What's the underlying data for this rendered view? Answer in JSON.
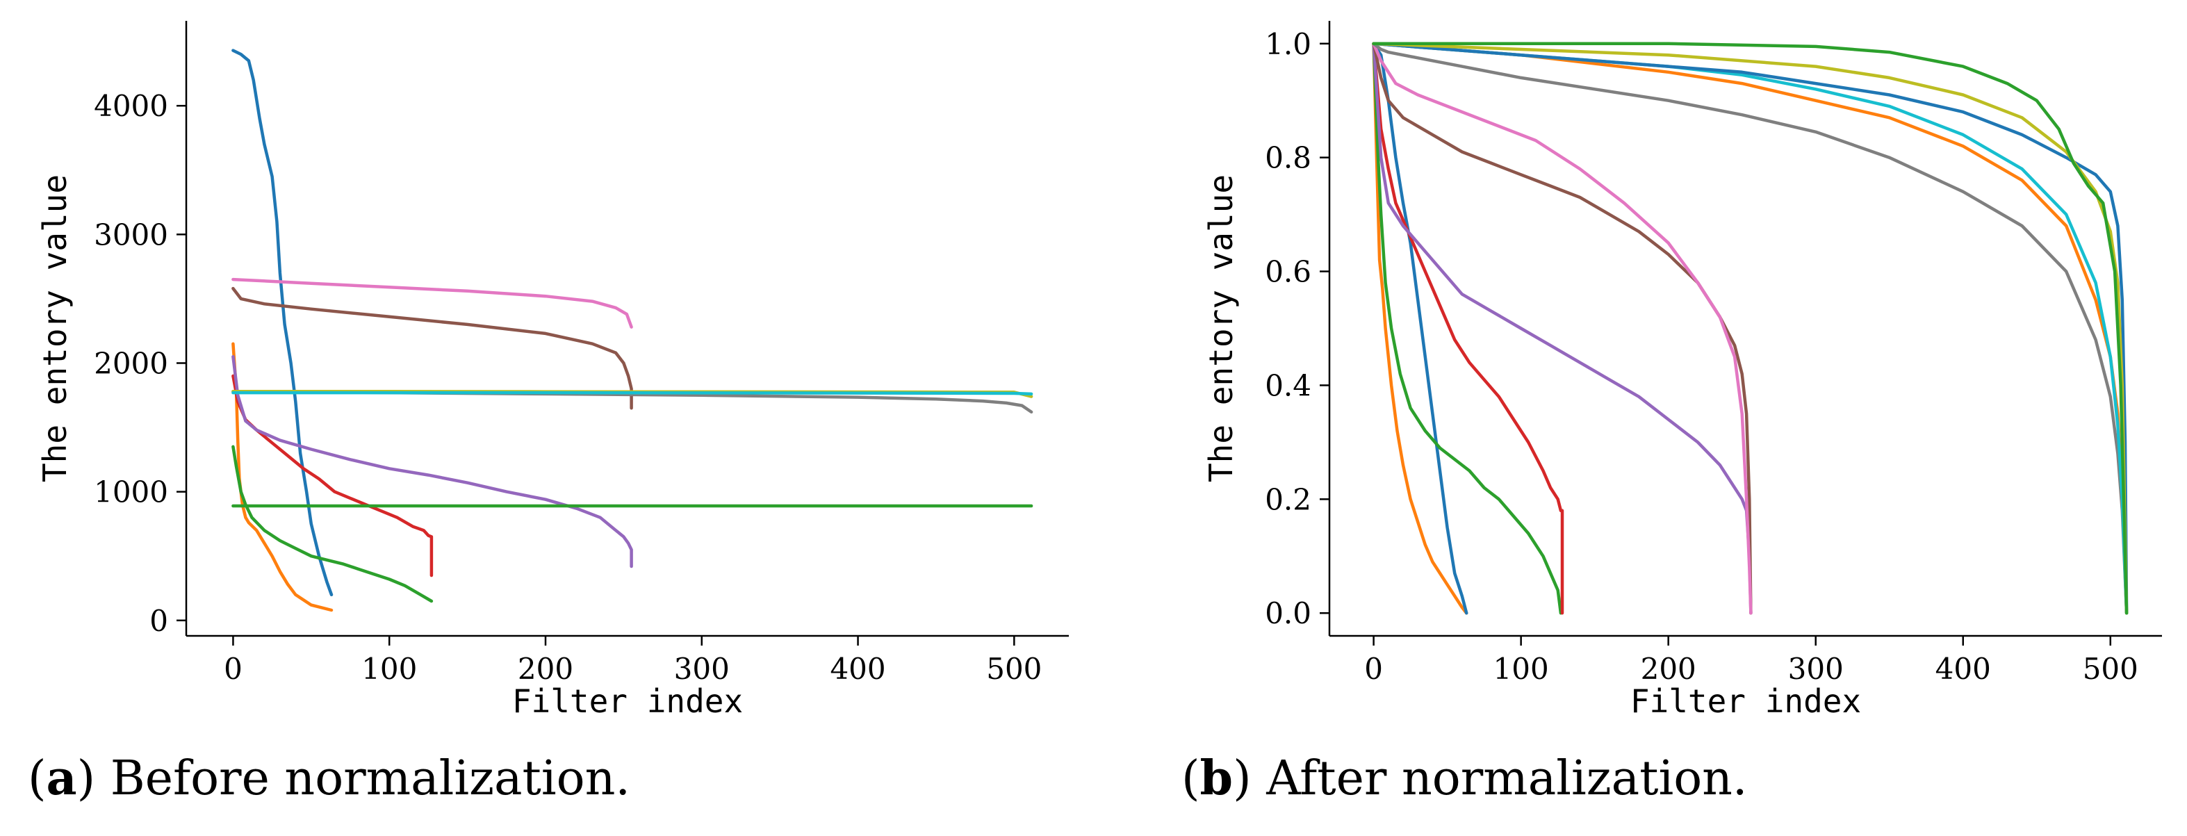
{
  "captions": {
    "a_letter": "a",
    "a_text": " Before normalization.",
    "b_letter": "b",
    "b_text": " After normalization."
  },
  "chart_data": [
    {
      "type": "line",
      "xlabel": "Filter index",
      "ylabel": "The entory value",
      "xlim": [
        -30,
        535
      ],
      "ylim": [
        -120,
        4660
      ],
      "xticks": [
        0,
        100,
        200,
        300,
        400,
        500
      ],
      "xtick_labels": [
        "0",
        "100",
        "200",
        "300",
        "400",
        "500"
      ],
      "yticks": [
        0,
        1000,
        2000,
        3000,
        4000
      ],
      "ytick_labels": [
        "0",
        "1000",
        "2000",
        "3000",
        "4000"
      ],
      "grid": false,
      "series": [
        {
          "color": "#1f77b4",
          "x": [
            0,
            5,
            10,
            13,
            17,
            20,
            25,
            28,
            30,
            33,
            37,
            40,
            43,
            47,
            50,
            55,
            60,
            63
          ],
          "y": [
            4430,
            4400,
            4350,
            4200,
            3900,
            3700,
            3450,
            3100,
            2700,
            2300,
            2000,
            1700,
            1300,
            1000,
            750,
            500,
            300,
            200
          ]
        },
        {
          "color": "#ff7f0e",
          "x": [
            0,
            2,
            3,
            4,
            6,
            8,
            10,
            15,
            20,
            25,
            30,
            35,
            40,
            50,
            63
          ],
          "y": [
            2150,
            1800,
            1400,
            1100,
            900,
            800,
            760,
            700,
            600,
            500,
            380,
            280,
            200,
            120,
            80
          ]
        },
        {
          "color": "#2ca02c",
          "x": [
            0,
            2,
            5,
            8,
            12,
            20,
            30,
            40,
            50,
            60,
            70,
            80,
            90,
            100,
            110,
            120,
            127
          ],
          "y": [
            1350,
            1200,
            1000,
            900,
            800,
            700,
            620,
            560,
            500,
            470,
            440,
            400,
            360,
            320,
            270,
            200,
            150
          ]
        },
        {
          "color": "#d62728",
          "x": [
            0,
            3,
            8,
            15,
            25,
            35,
            45,
            55,
            65,
            75,
            85,
            95,
            105,
            115,
            122,
            125,
            127,
            127
          ],
          "y": [
            1900,
            1700,
            1560,
            1480,
            1380,
            1280,
            1180,
            1100,
            1000,
            950,
            900,
            850,
            800,
            730,
            700,
            660,
            650,
            350
          ]
        },
        {
          "color": "#9467bd",
          "x": [
            0,
            3,
            8,
            15,
            30,
            50,
            75,
            100,
            125,
            150,
            175,
            200,
            220,
            235,
            245,
            250,
            253,
            255,
            255
          ],
          "y": [
            2050,
            1750,
            1550,
            1480,
            1400,
            1330,
            1250,
            1180,
            1130,
            1070,
            1000,
            940,
            870,
            800,
            700,
            650,
            600,
            550,
            420
          ]
        },
        {
          "color": "#8c564b",
          "x": [
            0,
            5,
            20,
            50,
            100,
            150,
            200,
            230,
            245,
            250,
            253,
            255,
            255
          ],
          "y": [
            2580,
            2500,
            2460,
            2420,
            2360,
            2300,
            2230,
            2150,
            2080,
            2000,
            1900,
            1800,
            1650
          ]
        },
        {
          "color": "#e377c2",
          "x": [
            0,
            50,
            100,
            150,
            200,
            230,
            245,
            252,
            255
          ],
          "y": [
            2650,
            2620,
            2590,
            2560,
            2520,
            2480,
            2430,
            2380,
            2280
          ]
        },
        {
          "color": "#7f7f7f",
          "x": [
            0,
            100,
            200,
            300,
            400,
            450,
            480,
            495,
            505,
            511
          ],
          "y": [
            1780,
            1770,
            1760,
            1750,
            1735,
            1720,
            1705,
            1690,
            1670,
            1620
          ]
        },
        {
          "color": "#bcbd22",
          "x": [
            0,
            100,
            200,
            300,
            400,
            500,
            511
          ],
          "y": [
            1780,
            1780,
            1778,
            1777,
            1776,
            1774,
            1740
          ]
        },
        {
          "color": "#17becf",
          "x": [
            0,
            100,
            200,
            300,
            400,
            500,
            511
          ],
          "y": [
            1770,
            1770,
            1770,
            1768,
            1767,
            1765,
            1760
          ]
        },
        {
          "color": "#2ca02c",
          "x": [
            0,
            100,
            200,
            300,
            400,
            500,
            511
          ],
          "y": [
            890,
            890,
            890,
            890,
            890,
            890,
            890
          ]
        }
      ]
    },
    {
      "type": "line",
      "xlabel": "Filter index",
      "ylabel": "The entory value",
      "xlim": [
        -30,
        535
      ],
      "ylim": [
        -0.04,
        1.04
      ],
      "xticks": [
        0,
        100,
        200,
        300,
        400,
        500
      ],
      "xtick_labels": [
        "0",
        "100",
        "200",
        "300",
        "400",
        "500"
      ],
      "yticks": [
        0.0,
        0.2,
        0.4,
        0.6,
        0.8,
        1.0
      ],
      "ytick_labels": [
        "0.0",
        "0.2",
        "0.4",
        "0.6",
        "0.8",
        "1.0"
      ],
      "grid": false,
      "series": [
        {
          "color": "#ff7f0e",
          "x": [
            0,
            2,
            4,
            6,
            8,
            12,
            16,
            20,
            25,
            30,
            35,
            40,
            45,
            50,
            55,
            60,
            63
          ],
          "y": [
            1.0,
            0.8,
            0.62,
            0.57,
            0.5,
            0.4,
            0.32,
            0.26,
            0.2,
            0.16,
            0.12,
            0.09,
            0.07,
            0.05,
            0.03,
            0.01,
            0.0
          ]
        },
        {
          "color": "#1f77b4",
          "x": [
            0,
            5,
            10,
            15,
            20,
            25,
            30,
            35,
            40,
            45,
            50,
            55,
            60,
            63
          ],
          "y": [
            1.0,
            0.98,
            0.9,
            0.8,
            0.72,
            0.65,
            0.55,
            0.45,
            0.35,
            0.25,
            0.15,
            0.07,
            0.03,
            0.0
          ]
        },
        {
          "color": "#2ca02c",
          "x": [
            0,
            3,
            5,
            8,
            12,
            18,
            25,
            35,
            45,
            55,
            65,
            75,
            85,
            95,
            105,
            115,
            120,
            125,
            127
          ],
          "y": [
            1.0,
            0.8,
            0.7,
            0.58,
            0.5,
            0.42,
            0.36,
            0.32,
            0.29,
            0.27,
            0.25,
            0.22,
            0.2,
            0.17,
            0.14,
            0.1,
            0.07,
            0.04,
            0.0
          ]
        },
        {
          "color": "#d62728",
          "x": [
            0,
            5,
            10,
            15,
            25,
            35,
            45,
            55,
            65,
            75,
            85,
            95,
            105,
            115,
            120,
            125,
            127,
            128,
            128
          ],
          "y": [
            1.0,
            0.85,
            0.78,
            0.72,
            0.66,
            0.6,
            0.54,
            0.48,
            0.44,
            0.41,
            0.38,
            0.34,
            0.3,
            0.25,
            0.22,
            0.2,
            0.18,
            0.18,
            0.0
          ]
        },
        {
          "color": "#9467bd",
          "x": [
            0,
            5,
            10,
            20,
            40,
            60,
            80,
            100,
            120,
            140,
            160,
            180,
            200,
            220,
            235,
            245,
            250,
            253,
            255,
            256
          ],
          "y": [
            1.0,
            0.8,
            0.72,
            0.68,
            0.62,
            0.56,
            0.53,
            0.5,
            0.47,
            0.44,
            0.41,
            0.38,
            0.34,
            0.3,
            0.26,
            0.22,
            0.2,
            0.18,
            0.1,
            0.0
          ]
        },
        {
          "color": "#8c564b",
          "x": [
            0,
            5,
            10,
            20,
            40,
            60,
            80,
            100,
            120,
            140,
            160,
            180,
            200,
            220,
            235,
            245,
            250,
            253,
            255,
            256
          ],
          "y": [
            1.0,
            0.94,
            0.9,
            0.87,
            0.84,
            0.81,
            0.79,
            0.77,
            0.75,
            0.73,
            0.7,
            0.67,
            0.63,
            0.58,
            0.52,
            0.47,
            0.42,
            0.35,
            0.2,
            0.0
          ]
        },
        {
          "color": "#e377c2",
          "x": [
            0,
            5,
            15,
            30,
            50,
            80,
            110,
            140,
            170,
            200,
            220,
            235,
            245,
            250,
            253,
            255,
            256
          ],
          "y": [
            1.0,
            0.97,
            0.93,
            0.91,
            0.89,
            0.86,
            0.83,
            0.78,
            0.72,
            0.65,
            0.58,
            0.52,
            0.45,
            0.35,
            0.2,
            0.08,
            0.0
          ]
        },
        {
          "color": "#7f7f7f",
          "x": [
            0,
            5,
            10,
            30,
            60,
            100,
            150,
            200,
            250,
            300,
            350,
            400,
            440,
            470,
            490,
            500,
            505,
            508,
            511
          ],
          "y": [
            1.0,
            0.99,
            0.985,
            0.975,
            0.96,
            0.94,
            0.92,
            0.9,
            0.875,
            0.845,
            0.8,
            0.74,
            0.68,
            0.6,
            0.48,
            0.38,
            0.28,
            0.18,
            0.0
          ]
        },
        {
          "color": "#ff7f0e",
          "x": [
            0,
            50,
            100,
            150,
            200,
            250,
            300,
            350,
            400,
            440,
            470,
            490,
            500,
            505,
            508,
            511
          ],
          "y": [
            1.0,
            0.99,
            0.98,
            0.965,
            0.95,
            0.93,
            0.9,
            0.87,
            0.82,
            0.76,
            0.68,
            0.55,
            0.45,
            0.35,
            0.2,
            0.0
          ]
        },
        {
          "color": "#17becf",
          "x": [
            0,
            50,
            100,
            150,
            200,
            250,
            300,
            350,
            400,
            440,
            470,
            490,
            500,
            505,
            508,
            511
          ],
          "y": [
            1.0,
            0.99,
            0.98,
            0.97,
            0.96,
            0.945,
            0.92,
            0.89,
            0.84,
            0.78,
            0.7,
            0.58,
            0.45,
            0.33,
            0.2,
            0.0
          ]
        },
        {
          "color": "#1f77b4",
          "x": [
            0,
            50,
            100,
            150,
            200,
            250,
            300,
            350,
            400,
            440,
            470,
            490,
            500,
            505,
            508,
            510,
            511
          ],
          "y": [
            1.0,
            0.99,
            0.98,
            0.97,
            0.96,
            0.95,
            0.93,
            0.91,
            0.88,
            0.84,
            0.8,
            0.77,
            0.74,
            0.68,
            0.55,
            0.3,
            0.0
          ]
        },
        {
          "color": "#bcbd22",
          "x": [
            0,
            50,
            100,
            200,
            300,
            350,
            400,
            440,
            470,
            490,
            500,
            505,
            508,
            511
          ],
          "y": [
            1.0,
            0.995,
            0.99,
            0.98,
            0.96,
            0.94,
            0.91,
            0.87,
            0.81,
            0.74,
            0.67,
            0.58,
            0.4,
            0.0
          ]
        },
        {
          "color": "#2ca02c",
          "x": [
            0,
            100,
            200,
            300,
            350,
            400,
            430,
            450,
            465,
            475,
            485,
            495,
            503,
            507,
            509,
            511
          ],
          "y": [
            1.0,
            1.0,
            1.0,
            0.995,
            0.985,
            0.96,
            0.93,
            0.9,
            0.85,
            0.79,
            0.75,
            0.72,
            0.6,
            0.4,
            0.2,
            0.0
          ]
        }
      ]
    }
  ]
}
